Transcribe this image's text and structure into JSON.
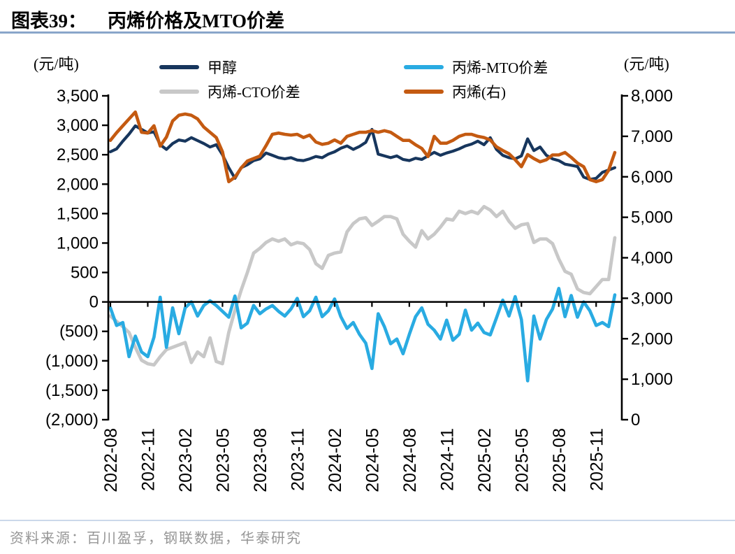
{
  "page": {
    "title_prefix": "图表39：",
    "title": "丙烯价格及MTO价差",
    "left_axis_unit": "(元/吨)",
    "right_axis_unit": "(元/吨)",
    "source": "资料来源：百川盈孚，钢联数据，华泰研究"
  },
  "colors": {
    "title_rule": "#8AA6CA",
    "source_rule": "#CBD8EA",
    "source_text": "#969696",
    "axis": "#000000",
    "methanol": "#17365D",
    "mto_spread": "#29ABE2",
    "cto_spread": "#C8C8C8",
    "propylene": "#C45A11"
  },
  "chart_data": {
    "type": "line",
    "title": "丙烯价格及MTO价差",
    "legend_position": "top",
    "grid": false,
    "x_tick_labels": [
      "2022-08",
      "2022-11",
      "2023-02",
      "2023-05",
      "2023-08",
      "2023-11",
      "2024-02",
      "2024-05",
      "2024-08",
      "2024-11",
      "2025-02",
      "2025-05",
      "2025-08",
      "2025-11"
    ],
    "left_axis": {
      "unit": "(元/吨)",
      "min": -2000,
      "max": 3500,
      "step": 500,
      "tick_labels": [
        "3,500",
        "3,000",
        "2,500",
        "2,000",
        "1,500",
        "1,000",
        "500",
        "0",
        "(500)",
        "(1,000)",
        "(1,500)",
        "(2,000)"
      ]
    },
    "right_axis": {
      "unit": "(元/吨)",
      "min": 0,
      "max": 8000,
      "step": 1000,
      "tick_labels": [
        "8,000",
        "7,000",
        "6,000",
        "5,000",
        "4,000",
        "3,000",
        "2,000",
        "1,000",
        "0"
      ]
    },
    "x": [
      "2022-08-01",
      "2022-08-15",
      "2022-09-01",
      "2022-09-15",
      "2022-10-01",
      "2022-10-15",
      "2022-11-01",
      "2022-11-15",
      "2022-12-01",
      "2022-12-15",
      "2023-01-01",
      "2023-01-15",
      "2023-02-01",
      "2023-02-15",
      "2023-03-01",
      "2023-03-15",
      "2023-04-01",
      "2023-04-15",
      "2023-05-01",
      "2023-05-15",
      "2023-06-01",
      "2023-06-15",
      "2023-07-01",
      "2023-07-15",
      "2023-08-01",
      "2023-08-15",
      "2023-09-01",
      "2023-09-15",
      "2023-10-01",
      "2023-10-15",
      "2023-11-01",
      "2023-11-15",
      "2023-12-01",
      "2023-12-15",
      "2024-01-01",
      "2024-01-15",
      "2024-02-01",
      "2024-02-15",
      "2024-03-01",
      "2024-03-15",
      "2024-04-01",
      "2024-04-15",
      "2024-05-01",
      "2024-05-15",
      "2024-06-01",
      "2024-06-15",
      "2024-07-01",
      "2024-07-15",
      "2024-08-01",
      "2024-08-15",
      "2024-09-01",
      "2024-09-15",
      "2024-10-01",
      "2024-10-15",
      "2024-11-01",
      "2024-11-15",
      "2024-12-01",
      "2024-12-15",
      "2025-01-01",
      "2025-01-15",
      "2025-02-01",
      "2025-02-15",
      "2025-03-01",
      "2025-03-15",
      "2025-04-01",
      "2025-04-15",
      "2025-05-01",
      "2025-05-15",
      "2025-06-01",
      "2025-06-15",
      "2025-07-01",
      "2025-07-15",
      "2025-08-01",
      "2025-08-15",
      "2025-09-01",
      "2025-09-15",
      "2025-10-01",
      "2025-10-15",
      "2025-11-01",
      "2025-11-15",
      "2025-12-01",
      "2025-12-15"
    ],
    "series": [
      {
        "name": "甲醇",
        "axis": "left",
        "color": "#17365D",
        "width": 4.2,
        "values": [
          2550,
          2600,
          2730,
          2850,
          2990,
          2930,
          2870,
          2890,
          2670,
          2590,
          2690,
          2750,
          2730,
          2790,
          2740,
          2690,
          2630,
          2670,
          2500,
          2280,
          2100,
          2280,
          2330,
          2400,
          2430,
          2530,
          2490,
          2450,
          2430,
          2450,
          2410,
          2400,
          2430,
          2470,
          2450,
          2510,
          2550,
          2610,
          2650,
          2590,
          2640,
          2710,
          2930,
          2510,
          2480,
          2450,
          2480,
          2420,
          2400,
          2440,
          2420,
          2480,
          2540,
          2490,
          2530,
          2560,
          2600,
          2650,
          2680,
          2730,
          2670,
          2790,
          2590,
          2490,
          2450,
          2430,
          2480,
          2770,
          2570,
          2630,
          2490,
          2430,
          2400,
          2340,
          2320,
          2300,
          2120,
          2080,
          2100,
          2200,
          2240,
          2280
        ]
      },
      {
        "name": "丙烯-MTO价差",
        "axis": "left",
        "color": "#29ABE2",
        "width": 4.6,
        "values": [
          -100,
          -400,
          -350,
          -930,
          -580,
          -850,
          -930,
          -600,
          80,
          -770,
          -100,
          -540,
          -100,
          0,
          -240,
          -60,
          20,
          -60,
          -160,
          -260,
          100,
          -440,
          -360,
          -60,
          -200,
          -120,
          -60,
          -160,
          -240,
          -120,
          60,
          -250,
          -150,
          80,
          -250,
          -150,
          50,
          -250,
          -450,
          -350,
          -550,
          -700,
          -1130,
          -200,
          -420,
          -710,
          -630,
          -880,
          -550,
          -250,
          -100,
          -380,
          -480,
          -630,
          -310,
          -650,
          -550,
          -140,
          -480,
          -360,
          -520,
          -560,
          -270,
          30,
          -240,
          90,
          -300,
          -1340,
          -240,
          -630,
          -300,
          -120,
          230,
          -250,
          110,
          -260,
          0,
          -150,
          -400,
          -350,
          -420,
          120
        ]
      },
      {
        "name": "丙烯-CTO价差",
        "axis": "left",
        "color": "#C8C8C8",
        "width": 4.8,
        "values": [
          -240,
          -330,
          -420,
          -520,
          -770,
          -990,
          -1050,
          -1070,
          -930,
          -810,
          -770,
          -730,
          -690,
          -1030,
          -850,
          -930,
          -610,
          -1010,
          -1050,
          -520,
          -140,
          200,
          500,
          830,
          910,
          1010,
          1070,
          1030,
          1070,
          970,
          1010,
          990,
          890,
          650,
          570,
          790,
          830,
          850,
          1190,
          1330,
          1410,
          1430,
          1300,
          1370,
          1450,
          1450,
          1410,
          1150,
          1030,
          930,
          1210,
          1070,
          1150,
          1270,
          1410,
          1390,
          1540,
          1500,
          1540,
          1500,
          1620,
          1560,
          1450,
          1540,
          1370,
          1250,
          1310,
          1330,
          1010,
          1070,
          1070,
          990,
          730,
          520,
          470,
          220,
          160,
          140,
          260,
          380,
          380,
          1090
        ]
      },
      {
        "name": "丙烯(右)",
        "axis": "right",
        "color": "#C45A11",
        "width": 4.6,
        "values": [
          6900,
          7090,
          7260,
          7430,
          7600,
          7100,
          7080,
          7260,
          6760,
          6980,
          7380,
          7520,
          7550,
          7520,
          7430,
          7230,
          7100,
          6970,
          6620,
          5880,
          5990,
          6220,
          6390,
          6450,
          6510,
          6770,
          7050,
          7080,
          7050,
          7030,
          7050,
          6970,
          7030,
          6860,
          6800,
          6830,
          6910,
          6830,
          7000,
          7050,
          7100,
          7100,
          7140,
          7100,
          7140,
          7100,
          7000,
          6900,
          6900,
          6790,
          6700,
          6500,
          7000,
          6830,
          6830,
          6900,
          7000,
          7050,
          7050,
          7000,
          6970,
          6910,
          6740,
          6650,
          6570,
          6420,
          6250,
          6550,
          6450,
          6370,
          6420,
          6540,
          6540,
          6600,
          6480,
          6340,
          6250,
          5930,
          5880,
          5930,
          6160,
          6600
        ]
      }
    ]
  }
}
